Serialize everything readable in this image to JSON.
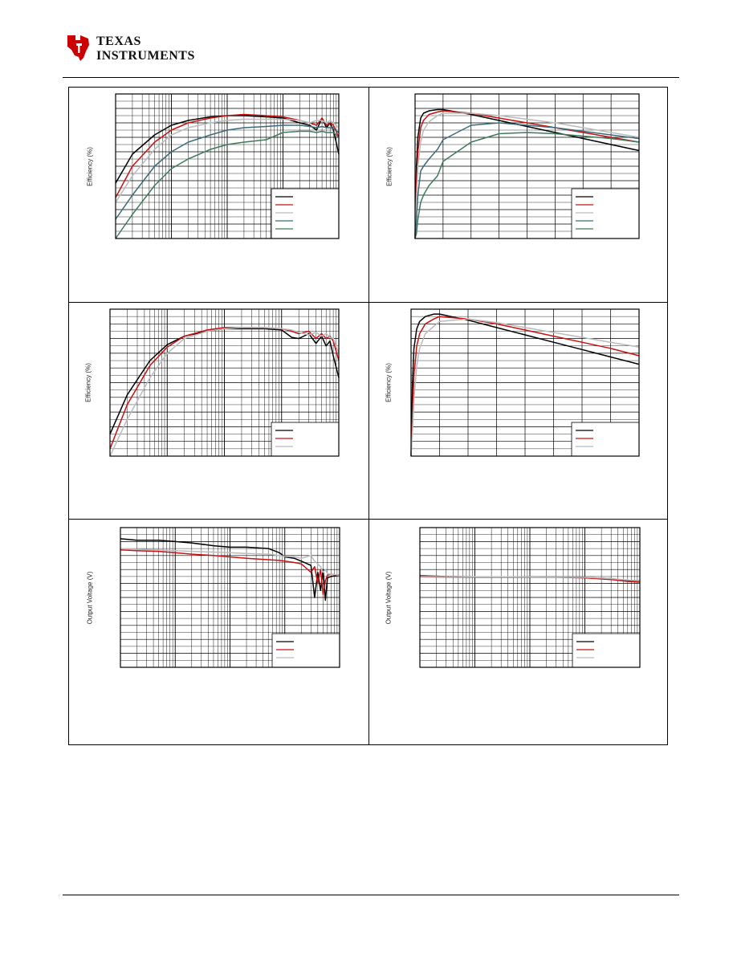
{
  "header": {
    "logo": {
      "line1": "TEXAS",
      "line2": "INSTRUMENTS",
      "brand_color": "#cc0000"
    }
  },
  "chart_data": [
    {
      "type": "line",
      "id": "a",
      "ylabel": "Efficiency (%)",
      "xscale": "log",
      "xlim": [
        0.0001,
        1.0
      ],
      "ylim": [
        40,
        100
      ],
      "legend": "bottom-right",
      "series": [
        {
          "color": "#000000",
          "x": [
            0.0001,
            0.0002,
            0.0005,
            0.001,
            0.002,
            0.005,
            0.01,
            0.02,
            0.05,
            0.1,
            0.2,
            0.3,
            0.4,
            0.5,
            0.6,
            0.7,
            0.8,
            1.0
          ],
          "y": [
            63,
            75,
            83,
            87,
            89,
            90.5,
            91,
            91,
            90.5,
            90,
            88,
            87,
            85,
            90,
            86,
            88,
            85,
            75
          ]
        },
        {
          "color": "#cc1111",
          "x": [
            0.0001,
            0.0002,
            0.0005,
            0.001,
            0.002,
            0.005,
            0.01,
            0.02,
            0.05,
            0.1,
            0.2,
            0.3,
            0.4,
            0.5,
            0.6,
            0.7,
            0.8,
            1.0
          ],
          "y": [
            57,
            70,
            80,
            85,
            88,
            90,
            91,
            91.5,
            91,
            90.5,
            89,
            88,
            87,
            90,
            87,
            88,
            87,
            82
          ]
        },
        {
          "color": "#bbbbbb",
          "x": [
            0.0001,
            0.0002,
            0.0005,
            0.001,
            0.002,
            0.005,
            0.01,
            0.02,
            0.05,
            0.1,
            0.2,
            0.3,
            0.4,
            0.5,
            0.6,
            0.7,
            0.8,
            1.0
          ],
          "y": [
            55,
            66,
            77,
            83,
            86,
            88,
            89,
            89.5,
            89.5,
            89.5,
            89,
            88,
            89,
            89,
            88,
            89,
            88,
            86
          ]
        },
        {
          "color": "#3a6b7a",
          "x": [
            0.0001,
            0.0002,
            0.0005,
            0.001,
            0.002,
            0.005,
            0.01,
            0.02,
            0.05,
            0.1,
            0.2,
            0.3,
            0.4,
            0.5,
            0.6,
            0.7,
            0.8,
            1.0
          ],
          "y": [
            48,
            58,
            70,
            76,
            80,
            83,
            85,
            86,
            86.5,
            87,
            87,
            86.5,
            86,
            86.5,
            86,
            86,
            85.5,
            84
          ]
        },
        {
          "color": "#3f7a5a",
          "x": [
            0.0001,
            0.0002,
            0.0005,
            0.001,
            0.002,
            0.005,
            0.01,
            0.02,
            0.05,
            0.1,
            0.2,
            0.3,
            0.4,
            0.5,
            0.6,
            0.7,
            0.8,
            1.0
          ],
          "y": [
            40,
            50,
            62,
            69,
            73,
            77,
            79,
            80,
            81,
            84,
            84.5,
            84.5,
            84,
            84.5,
            84,
            84,
            84,
            82
          ]
        }
      ]
    },
    {
      "type": "line",
      "id": "b",
      "ylabel": "Efficiency (%)",
      "xscale": "linear",
      "xlim": [
        0,
        8
      ],
      "ylim": [
        40,
        100
      ],
      "legend": "bottom-right",
      "series": [
        {
          "color": "#000000",
          "x": [
            0,
            0.05,
            0.1,
            0.2,
            0.3,
            0.5,
            0.8,
            1,
            2,
            3,
            4,
            5,
            6,
            7,
            8
          ],
          "y": [
            40,
            70,
            82,
            90,
            92,
            93,
            93.5,
            93.5,
            91.5,
            89,
            86.5,
            84,
            81.5,
            79,
            76.5
          ]
        },
        {
          "color": "#cc1111",
          "x": [
            0,
            0.05,
            0.1,
            0.2,
            0.3,
            0.5,
            0.8,
            1,
            2,
            3,
            4,
            5,
            6,
            7,
            8
          ],
          "y": [
            40,
            62,
            76,
            86,
            89,
            91.5,
            92.5,
            93,
            92,
            90,
            88,
            86,
            84,
            82,
            80
          ]
        },
        {
          "color": "#bbbbbb",
          "x": [
            0,
            0.05,
            0.1,
            0.2,
            0.3,
            0.5,
            0.8,
            1,
            2,
            3,
            4,
            5,
            6,
            7,
            8
          ],
          "y": [
            40,
            56,
            70,
            80,
            85,
            88.5,
            91,
            92,
            92,
            91,
            89.5,
            88,
            86,
            84,
            82
          ]
        },
        {
          "color": "#3a6b7a",
          "x": [
            0,
            0.05,
            0.1,
            0.2,
            0.3,
            0.5,
            0.8,
            1,
            2,
            3,
            4,
            5,
            6,
            7,
            8
          ],
          "y": [
            40,
            48,
            58,
            68,
            70,
            73,
            77,
            81,
            87,
            88,
            87,
            86,
            84.5,
            83,
            81.5
          ]
        },
        {
          "color": "#3f7a5a",
          "x": [
            0,
            0.05,
            0.1,
            0.2,
            0.3,
            0.5,
            0.8,
            1,
            2,
            3,
            4,
            5,
            6,
            7,
            8
          ],
          "y": [
            40,
            42,
            48,
            55,
            58,
            62,
            66,
            72,
            80,
            83.5,
            84,
            83.5,
            82.5,
            81.5,
            80
          ]
        }
      ]
    },
    {
      "type": "line",
      "id": "c",
      "ylabel": "Efficiency (%)",
      "xscale": "log",
      "xlim": [
        0.0001,
        1.0
      ],
      "ylim": [
        40,
        100
      ],
      "legend": "bottom-right",
      "series": [
        {
          "color": "#000000",
          "x": [
            0.0001,
            0.0002,
            0.0005,
            0.001,
            0.002,
            0.005,
            0.01,
            0.02,
            0.05,
            0.1,
            0.15,
            0.2,
            0.3,
            0.4,
            0.5,
            0.6,
            0.7,
            0.8,
            1.0
          ],
          "y": [
            49,
            65,
            79,
            85.5,
            89,
            91,
            92,
            92,
            92,
            91.5,
            88.5,
            88,
            90,
            86,
            89,
            85,
            87,
            81,
            72
          ]
        },
        {
          "color": "#cc1111",
          "x": [
            0.0001,
            0.0002,
            0.0005,
            0.001,
            0.002,
            0.005,
            0.01,
            0.02,
            0.05,
            0.1,
            0.15,
            0.2,
            0.3,
            0.4,
            0.5,
            0.6,
            0.7,
            0.8,
            1.0
          ],
          "y": [
            43,
            61,
            77,
            84.5,
            89,
            91.5,
            92.5,
            92.5,
            92.5,
            92,
            91,
            90,
            91,
            88,
            90,
            88,
            89,
            87,
            79
          ]
        },
        {
          "color": "#bbbbbb",
          "x": [
            0.0001,
            0.0002,
            0.0005,
            0.001,
            0.002,
            0.005,
            0.01,
            0.02,
            0.05,
            0.1,
            0.15,
            0.2,
            0.3,
            0.4,
            0.5,
            0.6,
            0.7,
            0.8,
            1.0
          ],
          "y": [
            40,
            55,
            72,
            82,
            88,
            91,
            92,
            92.5,
            92.5,
            92,
            91.5,
            90.5,
            89.5,
            90.5,
            89,
            90,
            88.5,
            88,
            82
          ]
        }
      ]
    },
    {
      "type": "line",
      "id": "d",
      "ylabel": "Efficiency (%)",
      "xscale": "linear",
      "xlim": [
        0,
        8
      ],
      "ylim": [
        40,
        100
      ],
      "legend": "bottom-right",
      "series": [
        {
          "color": "#000000",
          "x": [
            0,
            0.05,
            0.1,
            0.2,
            0.3,
            0.5,
            0.8,
            1,
            2,
            3,
            4,
            5,
            6,
            7,
            8
          ],
          "y": [
            40,
            70,
            84,
            92,
            95,
            97,
            98,
            98,
            95.5,
            92.5,
            89.5,
            86.5,
            83.5,
            80.5,
            77.5
          ]
        },
        {
          "color": "#cc1111",
          "x": [
            0,
            0.05,
            0.1,
            0.2,
            0.3,
            0.5,
            0.8,
            1,
            2,
            3,
            4,
            5,
            6,
            7,
            8
          ],
          "y": [
            40,
            57,
            73,
            85,
            90,
            94,
            96,
            97,
            96,
            94,
            91.5,
            89,
            86.5,
            84,
            81
          ]
        },
        {
          "color": "#bbbbbb",
          "x": [
            0,
            0.05,
            0.1,
            0.2,
            0.3,
            0.5,
            0.8,
            1,
            2,
            3,
            4,
            5,
            6,
            7,
            8
          ],
          "y": [
            40,
            50,
            63,
            77,
            84,
            90,
            93,
            95,
            96,
            94.5,
            92.5,
            90.5,
            88.5,
            86.5,
            84.5
          ]
        }
      ]
    },
    {
      "type": "line",
      "id": "e",
      "ylabel": "Output Voltage (V)",
      "xscale": "log",
      "xlim": [
        0.0001,
        1.0
      ],
      "ylim": [
        0,
        100
      ],
      "legend": "bottom-right",
      "series": [
        {
          "color": "#000000",
          "x": [
            0.0001,
            0.0002,
            0.0005,
            0.001,
            0.002,
            0.005,
            0.01,
            0.02,
            0.05,
            0.08,
            0.1,
            0.15,
            0.2,
            0.3,
            0.35,
            0.4,
            0.45,
            0.5,
            0.55,
            0.6,
            0.7,
            1.0
          ],
          "y": [
            92,
            91,
            91,
            90,
            89,
            87,
            86,
            86,
            85,
            82,
            79,
            78,
            76,
            73,
            50,
            68,
            55,
            70,
            48,
            64,
            65,
            66
          ]
        },
        {
          "color": "#cc1111",
          "x": [
            0.0001,
            0.0002,
            0.0005,
            0.001,
            0.002,
            0.005,
            0.01,
            0.02,
            0.05,
            0.08,
            0.1,
            0.15,
            0.2,
            0.3,
            0.35,
            0.4,
            0.45,
            0.5,
            0.55,
            0.6,
            0.7,
            1.0
          ],
          "y": [
            84,
            83.5,
            83,
            82,
            81,
            80,
            79,
            78,
            77,
            76.5,
            76,
            75,
            74,
            68,
            72,
            60,
            70,
            52,
            62,
            66,
            66.5,
            66
          ]
        },
        {
          "color": "#bbbbbb",
          "x": [
            0.0001,
            0.0002,
            0.0005,
            0.001,
            0.002,
            0.005,
            0.01,
            0.02,
            0.05,
            0.08,
            0.1,
            0.15,
            0.2,
            0.3,
            0.35,
            0.4,
            0.45,
            0.5,
            0.55,
            0.6,
            0.7,
            1.0
          ],
          "y": [
            85,
            84.5,
            84,
            83.5,
            83,
            82.5,
            82,
            81.5,
            81,
            80,
            79.5,
            79,
            78,
            80,
            76,
            74,
            72,
            68,
            70,
            67,
            66.5,
            66
          ]
        }
      ]
    },
    {
      "type": "line",
      "id": "f",
      "ylabel": "Output Voltage (V)",
      "xscale": "log",
      "xlim": [
        0.0001,
        1.0
      ],
      "ylim": [
        0,
        100
      ],
      "legend": "bottom-right",
      "series": [
        {
          "color": "#000000",
          "x": [
            0.0001,
            0.0003,
            0.001,
            0.003,
            0.01,
            0.03,
            0.1,
            0.3,
            0.6,
            1.0
          ],
          "y": [
            65.5,
            65,
            64.8,
            64.8,
            64.8,
            64.6,
            64.3,
            63.5,
            62,
            62
          ]
        },
        {
          "color": "#cc1111",
          "x": [
            0.0001,
            0.0003,
            0.001,
            0.003,
            0.01,
            0.03,
            0.1,
            0.3,
            0.6,
            1.0
          ],
          "y": [
            64.8,
            64.6,
            64.5,
            64.5,
            64.5,
            64.4,
            64,
            62.8,
            61.5,
            61
          ]
        },
        {
          "color": "#bbbbbb",
          "x": [
            0.0001,
            0.0003,
            0.001,
            0.003,
            0.01,
            0.03,
            0.1,
            0.3,
            0.6,
            1.0
          ],
          "y": [
            65,
            64.9,
            64.8,
            64.8,
            64.7,
            64.6,
            64.4,
            63.5,
            62.5,
            62
          ]
        }
      ]
    }
  ]
}
